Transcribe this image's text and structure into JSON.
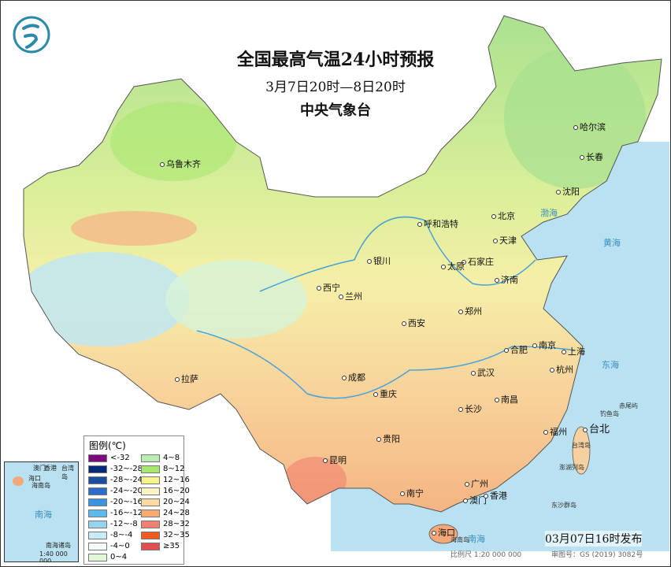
{
  "title": "全国最高气温24小时预报",
  "period": "3月7日20时—8日20时",
  "issuer": "中央气象台",
  "logo": "cma-dragon-logo",
  "cities": [
    "乌鲁木齐",
    "哈尔滨",
    "长春",
    "沈阳",
    "北京",
    "天津",
    "呼和浩特",
    "石家庄",
    "太原",
    "济南",
    "银川",
    "西宁",
    "兰州",
    "西安",
    "郑州",
    "合肥",
    "南京",
    "上海",
    "杭州",
    "武汉",
    "成都",
    "拉萨",
    "重庆",
    "南昌",
    "长沙",
    "福州",
    "台北",
    "贵阳",
    "昆明",
    "南宁",
    "广州",
    "澳门",
    "香港",
    "海口"
  ],
  "seas": [
    "渤海",
    "黄海",
    "东海",
    "南海",
    "台湾岛",
    "海南岛",
    "钓鱼岛",
    "赤尾屿",
    "澎湖列岛",
    "东沙群岛"
  ],
  "legend": {
    "title": "图例(℃)",
    "items": [
      {
        "label": "<-32",
        "color": "#7b0a7e"
      },
      {
        "label": "-32~-28",
        "color": "#062a78"
      },
      {
        "label": "-28~-24",
        "color": "#1a4fa0"
      },
      {
        "label": "-24~-20",
        "color": "#2a6cc8"
      },
      {
        "label": "-20~-16",
        "color": "#3a94e0"
      },
      {
        "label": "-16~-12",
        "color": "#5fb8ea"
      },
      {
        "label": "-12~-8",
        "color": "#96d4f0"
      },
      {
        "label": "-8~-4",
        "color": "#c8ecf6"
      },
      {
        "label": "-4~0",
        "color": "#f4fbfd"
      },
      {
        "label": "0~4",
        "color": "#e0f8d8"
      },
      {
        "label": "4~8",
        "color": "#b8eeb0"
      },
      {
        "label": "8~12",
        "color": "#a8e870"
      },
      {
        "label": "12~16",
        "color": "#f6f48a"
      },
      {
        "label": "16~20",
        "color": "#fbf2c4"
      },
      {
        "label": "20~24",
        "color": "#fbdba0"
      },
      {
        "label": "24~28",
        "color": "#f6ac70"
      },
      {
        "label": "28~32",
        "color": "#f08070"
      },
      {
        "label": "32~35",
        "color": "#f05a20"
      },
      {
        "label": "≥35",
        "color": "#e05050"
      }
    ]
  },
  "inset": {
    "labels": [
      "澳门",
      "香港",
      "台湾岛",
      "海口",
      "海南岛",
      "南海",
      "南海诸岛"
    ],
    "scale": "1:40 000 000"
  },
  "publish_time": "03月07日16时发布",
  "scale": "比例尺 1:20 000 000",
  "approval": "审图号：GS (2019) 3082号"
}
